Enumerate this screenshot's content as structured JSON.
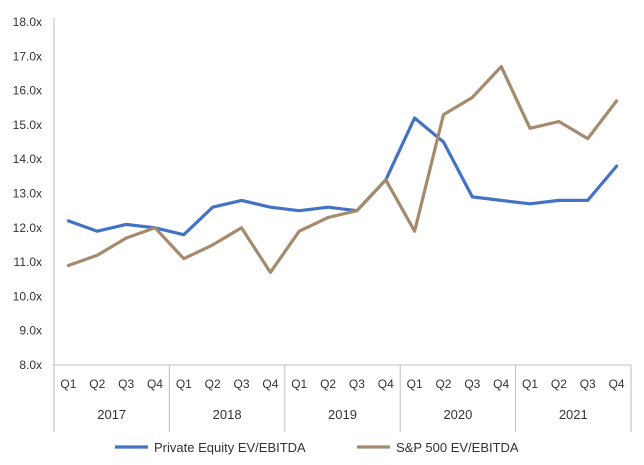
{
  "chart_data": {
    "type": "line",
    "quarters": [
      "Q1",
      "Q2",
      "Q3",
      "Q4",
      "Q1",
      "Q2",
      "Q3",
      "Q4",
      "Q1",
      "Q2",
      "Q3",
      "Q4",
      "Q1",
      "Q2",
      "Q3",
      "Q4",
      "Q1",
      "Q2",
      "Q3",
      "Q4"
    ],
    "years": [
      "2017",
      "2018",
      "2019",
      "2020",
      "2021"
    ],
    "y_ticks": [
      "8.0x",
      "9.0x",
      "10.0x",
      "11.0x",
      "12.0x",
      "13.0x",
      "14.0x",
      "15.0x",
      "16.0x",
      "17.0x",
      "18.0x"
    ],
    "ylim": [
      8,
      18
    ],
    "grid": false,
    "legend_position": "bottom",
    "series": [
      {
        "name": "Private Equity EV/EBITDA",
        "color": "#4472c4",
        "values": [
          12.2,
          11.9,
          12.1,
          12.0,
          11.8,
          12.6,
          12.8,
          12.6,
          12.5,
          12.6,
          12.5,
          13.4,
          15.2,
          14.5,
          12.9,
          12.8,
          12.7,
          12.8,
          12.8,
          13.8
        ]
      },
      {
        "name": "S&P 500 EV/EBITDA",
        "color": "#a68a6d",
        "values": [
          10.9,
          11.2,
          11.7,
          12.0,
          11.1,
          11.5,
          12.0,
          10.7,
          11.9,
          12.3,
          12.5,
          13.4,
          11.9,
          15.3,
          15.8,
          16.7,
          14.9,
          15.1,
          14.6,
          15.7
        ]
      }
    ]
  }
}
